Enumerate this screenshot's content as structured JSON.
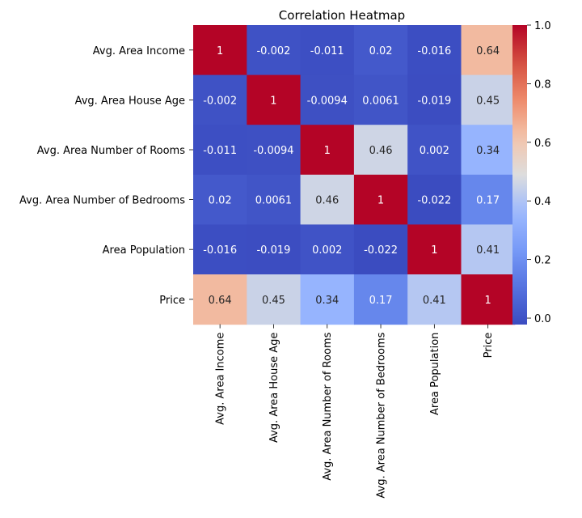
{
  "chart_data": {
    "type": "heatmap",
    "title": "Correlation Heatmap",
    "xlabel": "",
    "ylabel": "",
    "rows": [
      "Avg. Area Income",
      "Avg. Area House Age",
      "Avg. Area Number of Rooms",
      "Avg. Area Number of Bedrooms",
      "Area Population",
      "Price"
    ],
    "columns": [
      "Avg. Area Income",
      "Avg. Area House Age",
      "Avg. Area Number of Rooms",
      "Avg. Area Number of Bedrooms",
      "Area Population",
      "Price"
    ],
    "values": [
      [
        1,
        -0.002,
        -0.011,
        0.02,
        -0.016,
        0.64
      ],
      [
        -0.002,
        1,
        -0.0094,
        0.0061,
        -0.019,
        0.45
      ],
      [
        -0.011,
        -0.0094,
        1,
        0.46,
        0.002,
        0.34
      ],
      [
        0.02,
        0.0061,
        0.46,
        1,
        -0.022,
        0.17
      ],
      [
        -0.016,
        -0.019,
        0.002,
        -0.022,
        1,
        0.41
      ],
      [
        0.64,
        0.45,
        0.34,
        0.17,
        0.41,
        1
      ]
    ],
    "cell_labels": [
      [
        "1",
        "-0.002",
        "-0.011",
        "0.02",
        "-0.016",
        "0.64"
      ],
      [
        "-0.002",
        "1",
        "-0.0094",
        "0.0061",
        "-0.019",
        "0.45"
      ],
      [
        "-0.011",
        "-0.0094",
        "1",
        "0.46",
        "0.002",
        "0.34"
      ],
      [
        "0.02",
        "0.0061",
        "0.46",
        "1",
        "-0.022",
        "0.17"
      ],
      [
        "-0.016",
        "-0.019",
        "0.002",
        "-0.022",
        "1",
        "0.41"
      ],
      [
        "0.64",
        "0.45",
        "0.34",
        "0.17",
        "0.41",
        "1"
      ]
    ],
    "colormap": "coolwarm",
    "colorbar": {
      "range": [
        -0.022,
        1.0
      ],
      "ticks": [
        0.0,
        0.2,
        0.4,
        0.6,
        0.8,
        1.0
      ],
      "tick_labels": [
        "0.0",
        "0.2",
        "0.4",
        "0.6",
        "0.8",
        "1.0"
      ]
    },
    "colors": {
      "low": "#3b4cc0",
      "mid": "#dddddd",
      "high": "#b40426"
    }
  }
}
